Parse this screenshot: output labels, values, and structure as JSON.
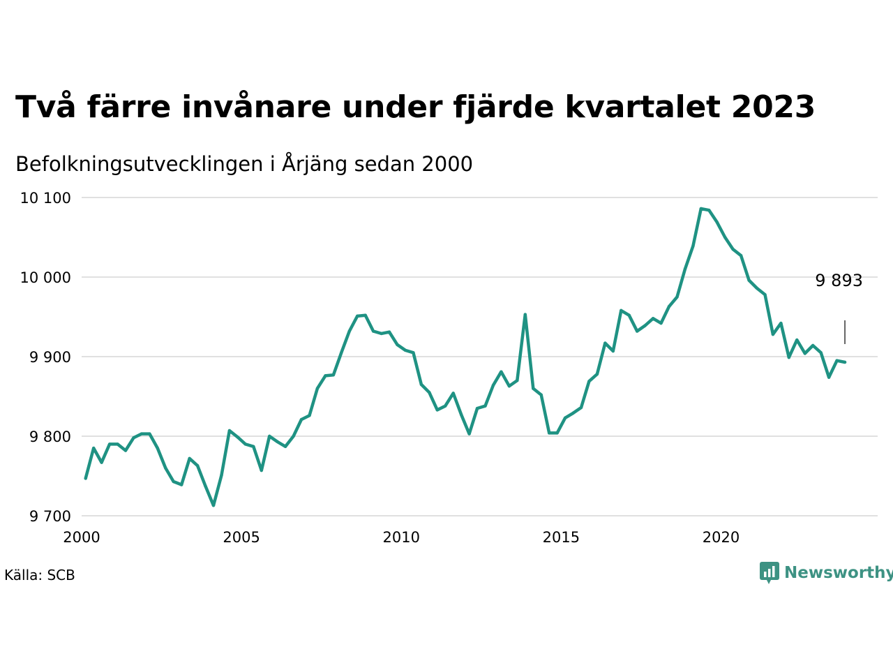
{
  "title": "Två färre invånare under fjärde kvartalet 2023",
  "subtitle": "Befolkningsutvecklingen i Årjäng sedan 2000",
  "source": "Källa: SCB",
  "brand": {
    "name": "Newsworthy",
    "color": "#3d9283"
  },
  "chart_data": {
    "type": "line",
    "title": "Två färre invånare under fjärde kvartalet 2023",
    "subtitle": "Befolkningsutvecklingen i Årjäng sedan 2000",
    "xlabel": "",
    "ylabel": "",
    "xlim": [
      2000,
      2024.9
    ],
    "ylim": [
      9700,
      10100
    ],
    "xticks": [
      2000,
      2005,
      2010,
      2015,
      2020
    ],
    "xtick_labels": [
      "2000",
      "2005",
      "2010",
      "2015",
      "2020"
    ],
    "yticks": [
      9700,
      9800,
      9900,
      10000,
      10100
    ],
    "ytick_labels": [
      "9 700",
      "9 800",
      "9 900",
      "10 000",
      "10 100"
    ],
    "grid": "horizontal",
    "line_color": "#1f9283",
    "end_label": "9 893",
    "series": [
      {
        "x_start": 2000.125,
        "x_step": 0.25,
        "values": [
          9747,
          9785,
          9767,
          9790,
          9790,
          9782,
          9798,
          9803,
          9803,
          9785,
          9760,
          9743,
          9739,
          9772,
          9763,
          9737,
          9713,
          9751,
          9807,
          9799,
          9790,
          9787,
          9757,
          9800,
          9793,
          9787,
          9800,
          9821,
          9826,
          9860,
          9876,
          9877,
          9905,
          9932,
          9951,
          9952,
          9932,
          9929,
          9931,
          9915,
          9908,
          9905,
          9865,
          9855,
          9833,
          9838,
          9854,
          9827,
          9803,
          9835,
          9838,
          9864,
          9881,
          9863,
          9870,
          9953,
          9860,
          9852,
          9804,
          9804,
          9823,
          9829,
          9836,
          9869,
          9878,
          9917,
          9907,
          9958,
          9952,
          9932,
          9939,
          9948,
          9942,
          9963,
          9975,
          10010,
          10039,
          10086,
          10084,
          10069,
          10050,
          10035,
          10027,
          9996,
          9986,
          9978,
          9928,
          9942,
          9899,
          9921,
          9904,
          9914,
          9905,
          9874,
          9895,
          9893
        ]
      }
    ]
  }
}
